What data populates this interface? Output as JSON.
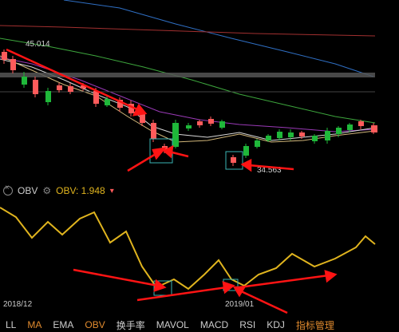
{
  "main": {
    "high_label": "45.014",
    "low_label": "34.563"
  },
  "obv_panel": {
    "indicator_name": "OBV",
    "value_label": "OBV: 1.948",
    "dropdown_arrow": "▾"
  },
  "axis": {
    "date_left": "2018/12",
    "date_right": "2019/01"
  },
  "toolbar": {
    "items": [
      "LL",
      "MA",
      "EMA",
      "OBV",
      "换手率",
      "MAVOL",
      "MACD",
      "RSI",
      "KDJ",
      "指标管理"
    ]
  },
  "colors": {
    "up": "#ff5b5b",
    "down": "#1fb83a",
    "obv_line": "#e0b41e",
    "arrow": "#ff1414",
    "ma_blue": "#2f6fc4",
    "ma_red": "#a23030",
    "ma_green": "#3da63d",
    "ma_purple": "#9a3ab7",
    "ma_white": "#d9d9d9",
    "ma_tan": "#d2b77a",
    "accent": "#e08a2e"
  }
}
